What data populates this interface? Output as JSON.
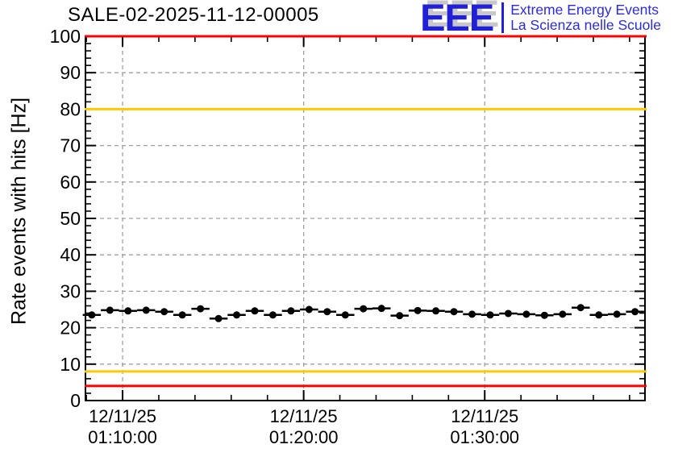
{
  "title": "SALE-02-2025-11-12-00005",
  "logo": {
    "letters": "EEE",
    "line1": "Extreme Energy Events",
    "line2": "La Scienza nelle Scuole"
  },
  "colors": {
    "logo_blue": "#2020d8",
    "logo_text_blue": "#2a2ae8",
    "logo_shadow_gray": "#c8c8c8",
    "threshold_red": "#ff0000",
    "threshold_yellow": "#ffc800",
    "grid_gray": "#a0a0a0",
    "marker_black": "#000000"
  },
  "chart_data": {
    "type": "scatter",
    "title": "SALE-02-2025-11-12-00005",
    "xlabel": "",
    "ylabel": "Rate events with hits [Hz]",
    "ylim": [
      0,
      100
    ],
    "y_major_step": 10,
    "y_minor_step": 2,
    "x_range_min": [
      67.95,
      98.85
    ],
    "x_minor_step_min": 2,
    "grid": "dashed gray at major ticks, both axes",
    "legend": "none",
    "x_major_ticks": [
      {
        "t_min": 70,
        "date": "12/11/25",
        "time": "01:10:00"
      },
      {
        "t_min": 80,
        "date": "12/11/25",
        "time": "01:20:00"
      },
      {
        "t_min": 90,
        "date": "12/11/25",
        "time": "01:30:00"
      }
    ],
    "y_tick_labels": [
      "0",
      "10",
      "20",
      "30",
      "40",
      "50",
      "60",
      "70",
      "80",
      "90",
      "100"
    ],
    "threshold_lines": [
      {
        "value_hz": 100,
        "color": "#ff0000"
      },
      {
        "value_hz": 80,
        "color": "#ffc800"
      },
      {
        "value_hz": 8,
        "color": "#ffc800"
      },
      {
        "value_hz": 4,
        "color": "#ff0000"
      }
    ],
    "series": [
      {
        "name": "rate-events-with-hits",
        "marker": "filled-circle",
        "color": "#000000",
        "bin_width_min": 1,
        "t_min": [
          68.3,
          69.3,
          70.3,
          71.3,
          72.3,
          73.3,
          74.3,
          75.3,
          76.3,
          77.3,
          78.3,
          79.3,
          80.3,
          81.3,
          82.3,
          83.3,
          84.3,
          85.3,
          86.3,
          87.3,
          88.3,
          89.3,
          90.3,
          91.3,
          92.3,
          93.3,
          94.3,
          95.3,
          96.3,
          97.3,
          98.3
        ],
        "rate_hz": [
          23.5,
          24.8,
          24.6,
          24.8,
          24.4,
          23.5,
          25.2,
          22.5,
          23.5,
          24.6,
          23.5,
          24.6,
          25.0,
          24.4,
          23.5,
          25.2,
          25.3,
          23.3,
          24.7,
          24.6,
          24.4,
          23.7,
          23.5,
          23.9,
          23.7,
          23.4,
          23.7,
          25.5,
          23.5,
          23.7,
          24.4
        ],
        "y_error_hz": 0.9
      }
    ]
  }
}
